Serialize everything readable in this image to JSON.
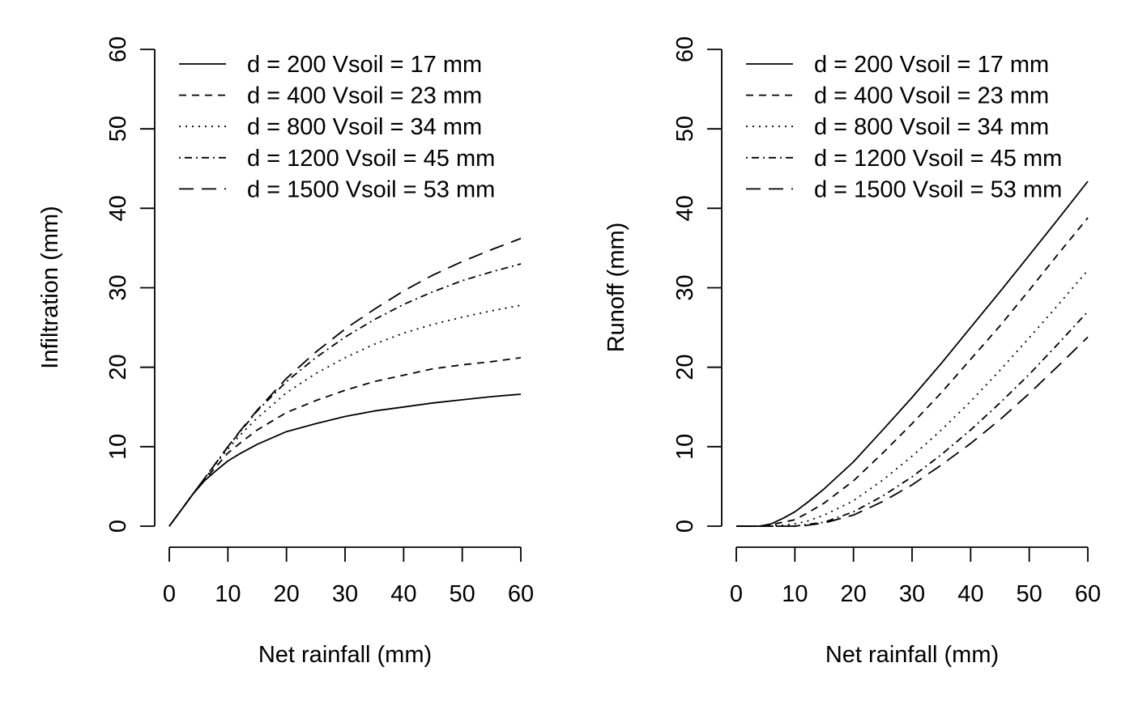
{
  "chart_data": [
    {
      "type": "line",
      "title": "",
      "xlabel": "Net rainfall (mm)",
      "ylabel": "Infiltration (mm)",
      "xlim": [
        0,
        60
      ],
      "ylim": [
        0,
        60
      ],
      "xticks": [
        "0",
        "10",
        "20",
        "30",
        "40",
        "50",
        "60"
      ],
      "yticks": [
        "0",
        "10",
        "20",
        "30",
        "40",
        "50",
        "60"
      ],
      "grid": false,
      "legend_position": "top-left",
      "series": [
        {
          "name": "d = 200 Vsoil = 17 mm",
          "style": "solid",
          "x": [
            0,
            2,
            4,
            6,
            8,
            10,
            12,
            15,
            20,
            25,
            30,
            35,
            40,
            45,
            50,
            55,
            60
          ],
          "y": [
            0,
            2.0,
            4.0,
            5.7,
            7.0,
            8.2,
            9.1,
            10.3,
            11.9,
            12.9,
            13.8,
            14.5,
            15.0,
            15.5,
            15.9,
            16.3,
            16.6
          ]
        },
        {
          "name": "d = 400 Vsoil = 23 mm",
          "style": "dashed",
          "x": [
            0,
            2,
            4,
            6,
            8,
            10,
            12,
            15,
            20,
            25,
            30,
            35,
            40,
            45,
            50,
            55,
            60
          ],
          "y": [
            0,
            2.0,
            4.0,
            5.8,
            7.5,
            9.2,
            10.4,
            12.1,
            14.3,
            15.8,
            17.1,
            18.2,
            19.0,
            19.8,
            20.3,
            20.7,
            21.2
          ]
        },
        {
          "name": "d = 800 Vsoil = 34 mm",
          "style": "dotted",
          "x": [
            0,
            2,
            4,
            6,
            8,
            10,
            12,
            15,
            20,
            25,
            30,
            35,
            40,
            45,
            50,
            55,
            60
          ],
          "y": [
            0,
            2.0,
            4.0,
            5.9,
            7.9,
            9.7,
            11.4,
            13.6,
            16.8,
            19.2,
            21.2,
            22.9,
            24.3,
            25.4,
            26.3,
            27.1,
            27.8
          ]
        },
        {
          "name": "d = 1200 Vsoil = 45 mm",
          "style": "dotdash",
          "x": [
            0,
            2,
            4,
            6,
            8,
            10,
            12,
            15,
            20,
            25,
            30,
            35,
            40,
            45,
            50,
            55,
            60
          ],
          "y": [
            0,
            2.0,
            4.0,
            6.0,
            8.0,
            10.0,
            11.8,
            14.5,
            18.2,
            21.2,
            23.8,
            26.0,
            27.9,
            29.5,
            30.9,
            32.0,
            33.0
          ]
        },
        {
          "name": "d = 1500 Vsoil = 53 mm",
          "style": "longdash",
          "x": [
            0,
            2,
            4,
            6,
            8,
            10,
            12,
            15,
            20,
            25,
            30,
            35,
            40,
            45,
            50,
            55,
            60
          ],
          "y": [
            0,
            2.0,
            4.0,
            6.0,
            8.0,
            10.0,
            11.9,
            14.6,
            18.6,
            21.9,
            24.8,
            27.3,
            29.6,
            31.6,
            33.3,
            34.8,
            36.2
          ]
        }
      ]
    },
    {
      "type": "line",
      "title": "",
      "xlabel": "Net rainfall (mm)",
      "ylabel": "Runoff (mm)",
      "xlim": [
        0,
        60
      ],
      "ylim": [
        0,
        60
      ],
      "xticks": [
        "0",
        "10",
        "20",
        "30",
        "40",
        "50",
        "60"
      ],
      "yticks": [
        "0",
        "10",
        "20",
        "30",
        "40",
        "50",
        "60"
      ],
      "grid": false,
      "legend_position": "top-left",
      "series": [
        {
          "name": "d = 200 Vsoil = 17 mm",
          "style": "solid",
          "x": [
            0,
            2,
            4,
            6,
            8,
            10,
            12,
            15,
            20,
            25,
            30,
            35,
            40,
            45,
            50,
            55,
            60
          ],
          "y": [
            0,
            0,
            0,
            0.3,
            1.0,
            1.8,
            2.9,
            4.7,
            8.1,
            12.1,
            16.2,
            20.5,
            25.0,
            29.5,
            34.1,
            38.7,
            43.4
          ]
        },
        {
          "name": "d = 400 Vsoil = 23 mm",
          "style": "dashed",
          "x": [
            0,
            2,
            4,
            6,
            8,
            10,
            12,
            15,
            20,
            25,
            30,
            35,
            40,
            45,
            50,
            55,
            60
          ],
          "y": [
            0,
            0,
            0,
            0.2,
            0.5,
            0.8,
            1.6,
            2.9,
            5.7,
            9.2,
            12.9,
            16.8,
            21.0,
            25.2,
            29.7,
            34.3,
            38.8
          ]
        },
        {
          "name": "d = 800 Vsoil = 34 mm",
          "style": "dotted",
          "x": [
            0,
            2,
            4,
            6,
            8,
            10,
            12,
            15,
            20,
            25,
            30,
            35,
            40,
            45,
            50,
            55,
            60
          ],
          "y": [
            0,
            0,
            0,
            0.1,
            0.1,
            0.3,
            0.6,
            1.4,
            3.2,
            5.8,
            8.8,
            12.1,
            15.7,
            19.6,
            23.7,
            27.9,
            32.2
          ]
        },
        {
          "name": "d = 1200 Vsoil = 45 mm",
          "style": "dotdash",
          "x": [
            0,
            2,
            4,
            6,
            8,
            10,
            12,
            15,
            20,
            25,
            30,
            35,
            40,
            45,
            50,
            55,
            60
          ],
          "y": [
            0,
            0,
            0,
            0,
            0,
            0,
            0.2,
            0.5,
            1.8,
            3.8,
            6.2,
            9.0,
            12.1,
            15.5,
            19.1,
            23.0,
            27.0
          ]
        },
        {
          "name": "d = 1500 Vsoil = 53 mm",
          "style": "longdash",
          "x": [
            0,
            2,
            4,
            6,
            8,
            10,
            12,
            15,
            20,
            25,
            30,
            35,
            40,
            45,
            50,
            55,
            60
          ],
          "y": [
            0,
            0,
            0,
            0,
            0,
            0,
            0.1,
            0.4,
            1.4,
            3.1,
            5.2,
            7.7,
            10.4,
            13.4,
            16.7,
            20.2,
            23.8
          ]
        }
      ]
    }
  ]
}
